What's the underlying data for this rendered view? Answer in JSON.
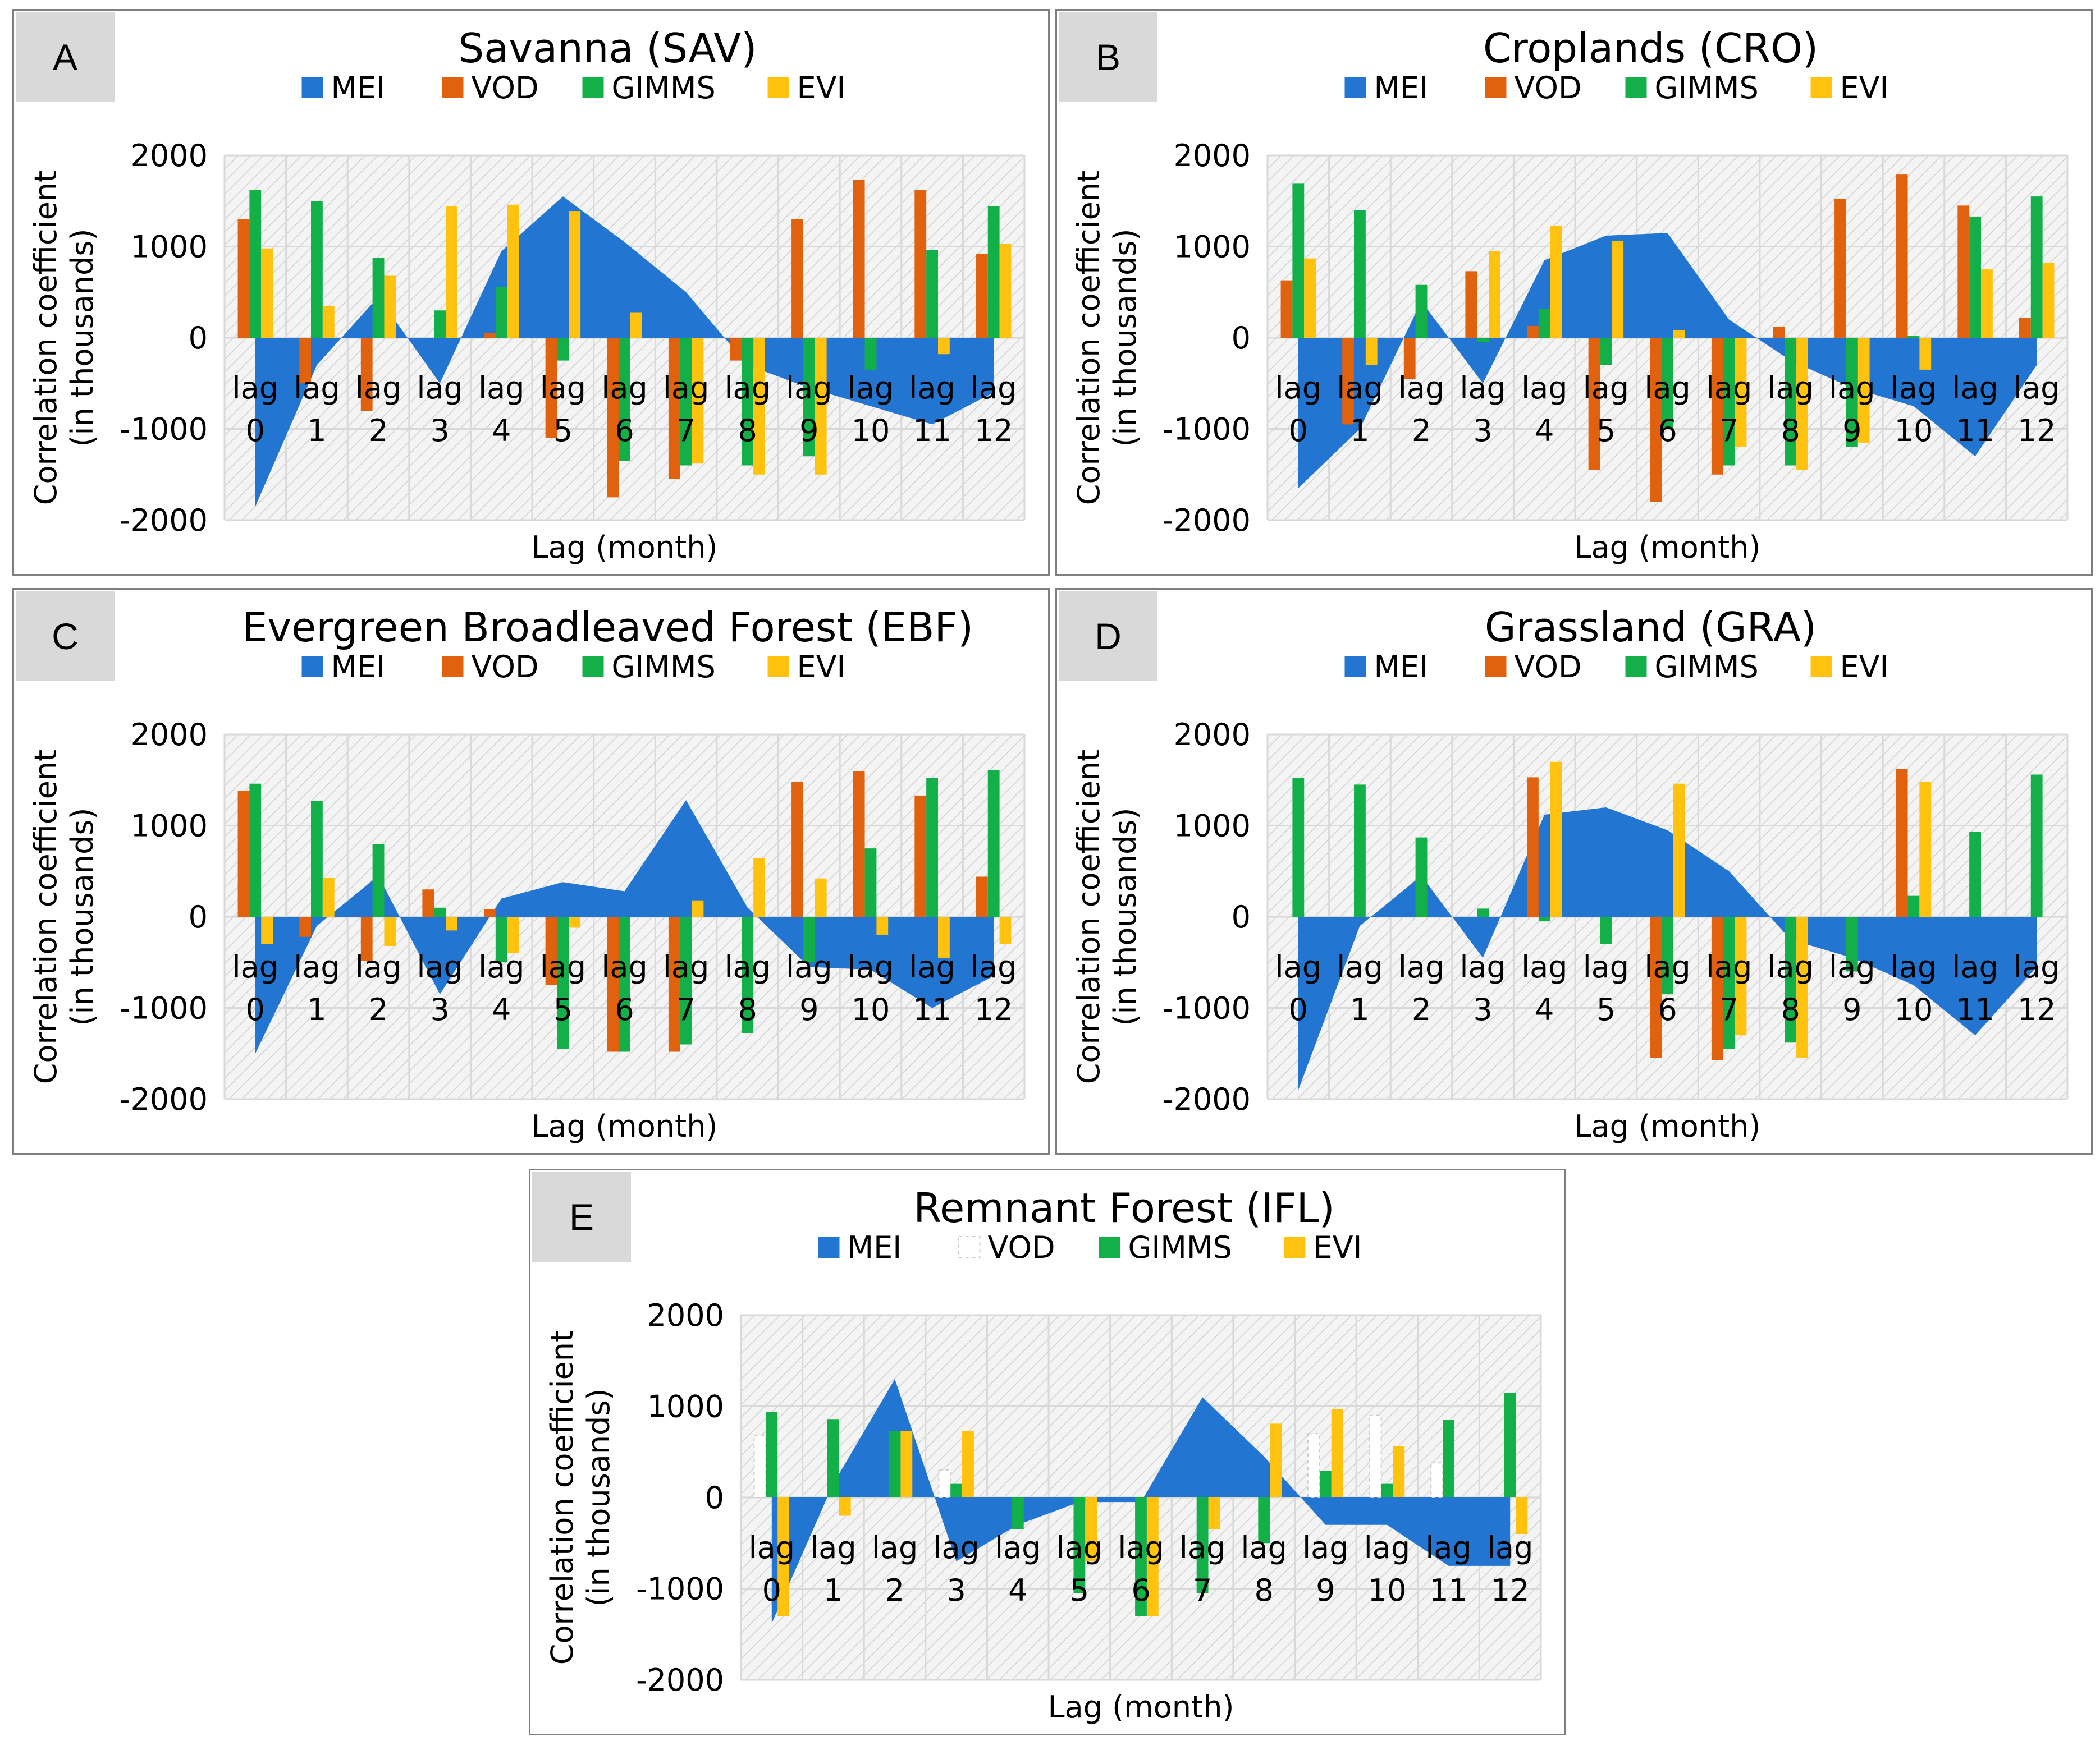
{
  "chart_data": [
    {
      "panel": "A",
      "type": "bar",
      "title": "Savanna (SAV)",
      "xlabel": "Lag (month)",
      "ylabel": [
        "Correlation coefficient",
        "(in thousands)"
      ],
      "ylim": [
        -2000,
        2000
      ],
      "yticks": [
        2000,
        1000,
        0,
        -1000,
        -2000
      ],
      "categories": [
        [
          "lag",
          "0"
        ],
        [
          "lag",
          "1"
        ],
        [
          "lag",
          "2"
        ],
        [
          "lag",
          "3"
        ],
        [
          "lag",
          "4"
        ],
        [
          "lag",
          "5"
        ],
        [
          "lag",
          "6"
        ],
        [
          "lag",
          "7"
        ],
        [
          "lag",
          "8"
        ],
        [
          "lag",
          "9"
        ],
        [
          "lag",
          "10"
        ],
        [
          "lag",
          "11"
        ],
        [
          "lag",
          "12"
        ]
      ],
      "area": {
        "name": "MEI",
        "values": [
          -1850,
          -300,
          450,
          -500,
          950,
          1550,
          1050,
          500,
          -300,
          -550,
          -750,
          -950,
          -600
        ]
      },
      "series": [
        {
          "name": "VOD",
          "values": [
            1300,
            -500,
            -800,
            0,
            50,
            -1100,
            -1750,
            -1550,
            -250,
            1300,
            1730,
            1620,
            920
          ]
        },
        {
          "name": "GIMMS",
          "values": [
            1620,
            1500,
            880,
            300,
            560,
            -250,
            -1350,
            -1400,
            -1400,
            -1300,
            -350,
            960,
            1440
          ]
        },
        {
          "name": "EVI",
          "values": [
            980,
            350,
            680,
            1440,
            1460,
            1390,
            280,
            -1380,
            -1500,
            -1500,
            0,
            -180,
            1030
          ]
        }
      ]
    },
    {
      "panel": "B",
      "type": "bar",
      "title": "Croplands (CRO)",
      "xlabel": "Lag (month)",
      "ylabel": [
        "Correlation coefficient",
        "(in thousands)"
      ],
      "ylim": [
        -2000,
        2000
      ],
      "yticks": [
        2000,
        1000,
        0,
        -1000,
        -2000
      ],
      "categories": [
        [
          "lag",
          "0"
        ],
        [
          "lag",
          "1"
        ],
        [
          "lag",
          "2"
        ],
        [
          "lag",
          "3"
        ],
        [
          "lag",
          "4"
        ],
        [
          "lag",
          "5"
        ],
        [
          "lag",
          "6"
        ],
        [
          "lag",
          "7"
        ],
        [
          "lag",
          "8"
        ],
        [
          "lag",
          "9"
        ],
        [
          "lag",
          "10"
        ],
        [
          "lag",
          "11"
        ],
        [
          "lag",
          "12"
        ]
      ],
      "area": {
        "name": "MEI",
        "values": [
          -1650,
          -1000,
          400,
          -500,
          850,
          1120,
          1150,
          200,
          -250,
          -550,
          -750,
          -1300,
          -300
        ]
      },
      "series": [
        {
          "name": "VOD",
          "values": [
            630,
            -950,
            -450,
            730,
            130,
            -1450,
            -1800,
            -1500,
            120,
            1520,
            1790,
            1450,
            220
          ]
        },
        {
          "name": "GIMMS",
          "values": [
            1690,
            1400,
            580,
            -50,
            320,
            -300,
            -1000,
            -1400,
            -1400,
            -1200,
            20,
            1330,
            1550
          ]
        },
        {
          "name": "EVI",
          "values": [
            870,
            -300,
            0,
            950,
            1230,
            1060,
            80,
            -1200,
            -1450,
            -1150,
            -350,
            750,
            820
          ]
        }
      ]
    },
    {
      "panel": "C",
      "type": "bar",
      "title": "Evergreen Broadleaved Forest (EBF)",
      "xlabel": "Lag (month)",
      "ylabel": [
        "Correlation coefficient",
        "(in thousands)"
      ],
      "ylim": [
        -2000,
        2000
      ],
      "yticks": [
        2000,
        1000,
        0,
        -1000,
        -2000
      ],
      "categories": [
        [
          "lag",
          "0"
        ],
        [
          "lag",
          "1"
        ],
        [
          "lag",
          "2"
        ],
        [
          "lag",
          "3"
        ],
        [
          "lag",
          "4"
        ],
        [
          "lag",
          "5"
        ],
        [
          "lag",
          "6"
        ],
        [
          "lag",
          "7"
        ],
        [
          "lag",
          "8"
        ],
        [
          "lag",
          "9"
        ],
        [
          "lag",
          "10"
        ],
        [
          "lag",
          "11"
        ],
        [
          "lag",
          "12"
        ]
      ],
      "area": {
        "name": "MEI",
        "values": [
          -1500,
          -100,
          450,
          -850,
          200,
          380,
          280,
          1280,
          100,
          -550,
          -580,
          -1000,
          -650
        ]
      },
      "series": [
        {
          "name": "VOD",
          "values": [
            1380,
            -220,
            -480,
            300,
            80,
            -750,
            -1480,
            -1480,
            0,
            1480,
            1600,
            1330,
            440
          ]
        },
        {
          "name": "GIMMS",
          "values": [
            1460,
            1270,
            800,
            100,
            -500,
            -1450,
            -1480,
            -1400,
            -1280,
            -500,
            750,
            1520,
            1610
          ]
        },
        {
          "name": "EVI",
          "values": [
            -300,
            430,
            -320,
            -150,
            -400,
            -120,
            0,
            180,
            640,
            420,
            -200,
            -450,
            -300
          ]
        }
      ]
    },
    {
      "panel": "D",
      "type": "bar",
      "title": "Grassland (GRA)",
      "xlabel": "Lag (month)",
      "ylabel": [
        "Correlation coefficient",
        "(in thousands)"
      ],
      "ylim": [
        -2000,
        2000
      ],
      "yticks": [
        2000,
        1000,
        0,
        -1000,
        -2000
      ],
      "categories": [
        [
          "lag",
          "0"
        ],
        [
          "lag",
          "1"
        ],
        [
          "lag",
          "2"
        ],
        [
          "lag",
          "3"
        ],
        [
          "lag",
          "4"
        ],
        [
          "lag",
          "5"
        ],
        [
          "lag",
          "6"
        ],
        [
          "lag",
          "7"
        ],
        [
          "lag",
          "8"
        ],
        [
          "lag",
          "9"
        ],
        [
          "lag",
          "10"
        ],
        [
          "lag",
          "11"
        ],
        [
          "lag",
          "12"
        ]
      ],
      "area": {
        "name": "MEI",
        "values": [
          -1900,
          -100,
          450,
          -450,
          1120,
          1200,
          950,
          500,
          -250,
          -450,
          -750,
          -1300,
          -550
        ]
      },
      "series": [
        {
          "name": "VOD",
          "values": [
            0,
            0,
            0,
            0,
            1530,
            0,
            -1550,
            -1570,
            0,
            0,
            1620,
            0,
            0
          ]
        },
        {
          "name": "GIMMS",
          "values": [
            1520,
            1450,
            870,
            90,
            -50,
            -300,
            -850,
            -1450,
            -1380,
            -600,
            230,
            930,
            1560
          ]
        },
        {
          "name": "EVI",
          "values": [
            0,
            0,
            0,
            0,
            1700,
            0,
            1460,
            -1300,
            -1550,
            0,
            1480,
            0,
            0
          ]
        }
      ]
    },
    {
      "panel": "E",
      "type": "bar",
      "title": "Remnant Forest (IFL)",
      "xlabel": "Lag (month)",
      "ylabel": [
        "Correlation coefficient",
        "(in thousands)"
      ],
      "ylim": [
        -2000,
        2000
      ],
      "yticks": [
        2000,
        1000,
        0,
        -1000,
        -2000
      ],
      "categories": [
        [
          "lag",
          "0"
        ],
        [
          "lag",
          "1"
        ],
        [
          "lag",
          "2"
        ],
        [
          "lag",
          "3"
        ],
        [
          "lag",
          "4"
        ],
        [
          "lag",
          "5"
        ],
        [
          "lag",
          "6"
        ],
        [
          "lag",
          "7"
        ],
        [
          "lag",
          "8"
        ],
        [
          "lag",
          "9"
        ],
        [
          "lag",
          "10"
        ],
        [
          "lag",
          "11"
        ],
        [
          "lag",
          "12"
        ]
      ],
      "area": {
        "name": "MEI",
        "values": [
          -1380,
          150,
          1300,
          -700,
          -300,
          -50,
          -50,
          1100,
          450,
          -300,
          -300,
          -750,
          -750
        ]
      },
      "series": [
        {
          "name": "VOD",
          "values": [
            680,
            0,
            0,
            300,
            0,
            0,
            0,
            0,
            0,
            700,
            900,
            380,
            0
          ]
        },
        {
          "name": "GIMMS",
          "values": [
            940,
            860,
            730,
            150,
            -350,
            -1050,
            -1300,
            -1050,
            -500,
            290,
            150,
            850,
            1150
          ]
        },
        {
          "name": "EVI",
          "values": [
            -1300,
            -200,
            730,
            730,
            0,
            -700,
            -1300,
            -350,
            810,
            970,
            560,
            0,
            -400
          ]
        }
      ]
    }
  ],
  "panel_letters": {
    "A": "A",
    "B": "B",
    "C": "C",
    "D": "D",
    "E": "E"
  },
  "colors": {
    "MEI": "#2275D0",
    "VOD": "#E0620F",
    "GIMMS": "#13B04A",
    "EVI": "#FFC20E",
    "VOD_E": "#ffffff",
    "plot_bg": "#f4f4f4",
    "grid": "#d9d9d9",
    "hatch": "#d0d0d0",
    "border": "#7f7f7f"
  }
}
